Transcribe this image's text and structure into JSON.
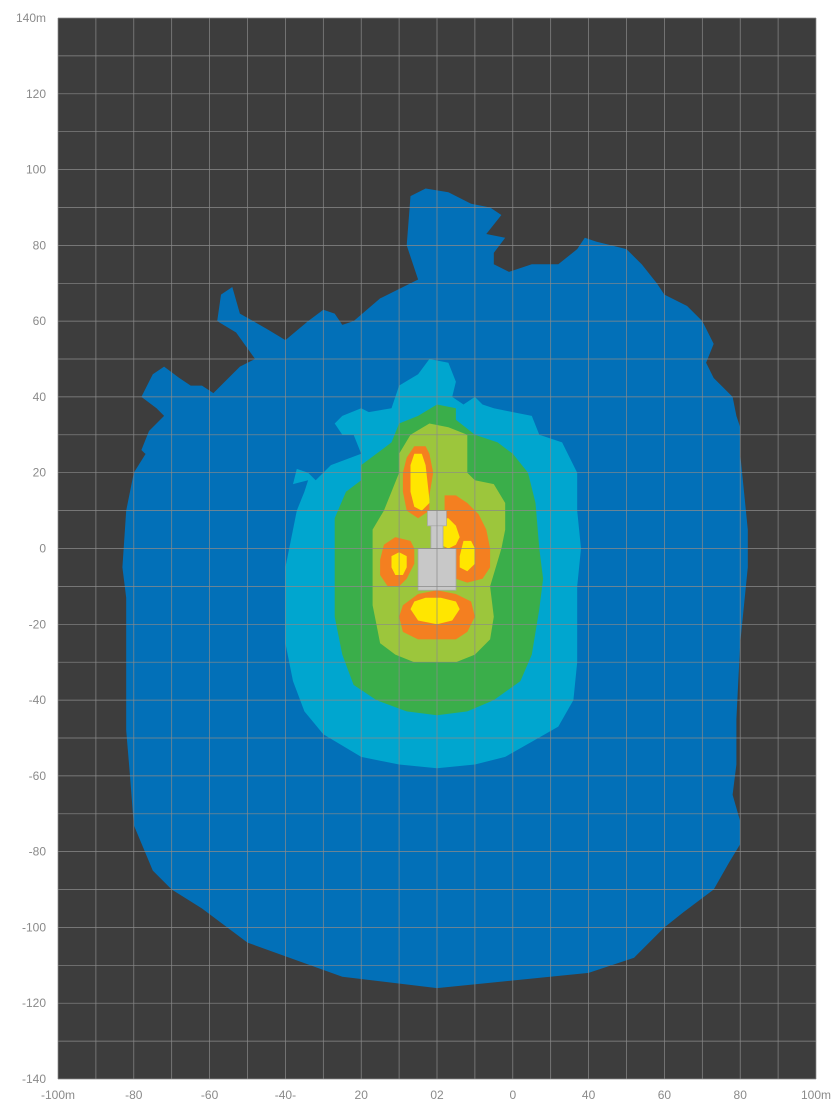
{
  "chart_data": {
    "type": "heatmap",
    "title": "",
    "xlabel": "",
    "ylabel": "",
    "xlim": [
      -100,
      100
    ],
    "ylim": [
      -140,
      140
    ],
    "grid": true,
    "x_tick_labels": [
      "-100m",
      "-80",
      "-60",
      "-40-",
      "20",
      "02",
      "0",
      "40",
      "60",
      "80",
      "100m"
    ],
    "y_tick_labels": [
      "140m",
      "120",
      "100",
      "80",
      "60",
      "40",
      "20",
      "0",
      "-20",
      "-40",
      "-60",
      "-80",
      "-100",
      "-120",
      "-140"
    ],
    "colors": {
      "background": "#3d3d3d",
      "grid": "#8a8a8a",
      "zone_1": "#0270b8",
      "zone_2": "#00a6cf",
      "zone_3": "#3aae4a",
      "zone_4": "#9cc63c",
      "zone_5": "#f47f20",
      "zone_6": "#ffe600",
      "machine": "#c8c8c8"
    },
    "zones": [
      {
        "id": "zone_1",
        "outline": [
          [
            0,
            -116
          ],
          [
            -25,
            -113
          ],
          [
            -50,
            -104
          ],
          [
            -62,
            -95
          ],
          [
            -70,
            -90
          ],
          [
            -75,
            -85
          ],
          [
            -80,
            -73
          ],
          [
            -81,
            -60
          ],
          [
            -82,
            -48
          ],
          [
            -82,
            -38
          ],
          [
            -82,
            -25
          ],
          [
            -82,
            -13
          ],
          [
            -83,
            -5
          ],
          [
            -82,
            10
          ],
          [
            -80,
            20
          ],
          [
            -75,
            28
          ],
          [
            -73,
            25
          ],
          [
            -77,
            25
          ],
          [
            -78,
            26
          ],
          [
            -76,
            31
          ],
          [
            -72,
            35
          ],
          [
            -74,
            37
          ],
          [
            -78,
            40
          ],
          [
            -75,
            46
          ],
          [
            -72,
            48
          ],
          [
            -68,
            45
          ],
          [
            -65,
            43
          ],
          [
            -62,
            43
          ],
          [
            -59,
            41
          ],
          [
            -52,
            48
          ],
          [
            -48,
            50
          ],
          [
            -53,
            57
          ],
          [
            -58,
            60
          ],
          [
            -57,
            67
          ],
          [
            -54,
            69
          ],
          [
            -52,
            62
          ],
          [
            -45,
            58
          ],
          [
            -40,
            55
          ],
          [
            -34,
            60
          ],
          [
            -30,
            63
          ],
          [
            -27,
            62
          ],
          [
            -25,
            59
          ],
          [
            -22,
            60
          ],
          [
            -15,
            66
          ],
          [
            -5,
            71
          ],
          [
            -8,
            80
          ],
          [
            -7,
            93
          ],
          [
            -3,
            95
          ],
          [
            3,
            94
          ],
          [
            9,
            91
          ],
          [
            14,
            90
          ],
          [
            17,
            88
          ],
          [
            13,
            83
          ],
          [
            18,
            82
          ],
          [
            15,
            78
          ],
          [
            15,
            75
          ],
          [
            19,
            73
          ],
          [
            25,
            75
          ],
          [
            29,
            75
          ],
          [
            32,
            75
          ],
          [
            37,
            79
          ],
          [
            39,
            82
          ],
          [
            42,
            81
          ],
          [
            50,
            79
          ],
          [
            54,
            75
          ],
          [
            58,
            70
          ],
          [
            60,
            67
          ],
          [
            66,
            64
          ],
          [
            70,
            60
          ],
          [
            73,
            54
          ],
          [
            71,
            49
          ],
          [
            73,
            45
          ],
          [
            78,
            40
          ],
          [
            79,
            35
          ],
          [
            80,
            32
          ],
          [
            80,
            25
          ],
          [
            81,
            15
          ],
          [
            82,
            5
          ],
          [
            82,
            -5
          ],
          [
            81,
            -15
          ],
          [
            80,
            -25
          ],
          [
            79,
            -45
          ],
          [
            79,
            -57
          ],
          [
            78,
            -65
          ],
          [
            80,
            -72
          ],
          [
            80,
            -78
          ],
          [
            77,
            -83
          ],
          [
            73,
            -90
          ],
          [
            65,
            -96
          ],
          [
            60,
            -100
          ],
          [
            52,
            -108
          ],
          [
            40,
            -112
          ],
          [
            20,
            -114
          ],
          [
            0,
            -116
          ]
        ]
      },
      {
        "id": "zone_2",
        "outline": [
          [
            0,
            -58
          ],
          [
            -10,
            -57
          ],
          [
            -20,
            -55
          ],
          [
            -30,
            -49
          ],
          [
            -35,
            -43
          ],
          [
            -38,
            -35
          ],
          [
            -40,
            -25
          ],
          [
            -40,
            -15
          ],
          [
            -40,
            -5
          ],
          [
            -39,
            0
          ],
          [
            -38,
            5
          ],
          [
            -37,
            10
          ],
          [
            -35,
            15
          ],
          [
            -34,
            18
          ],
          [
            -38,
            17
          ],
          [
            -37,
            21
          ],
          [
            -34,
            20
          ],
          [
            -32,
            18
          ],
          [
            -28,
            22
          ],
          [
            -20,
            25
          ],
          [
            -22,
            30
          ],
          [
            -25,
            30
          ],
          [
            -27,
            33
          ],
          [
            -25,
            35
          ],
          [
            -20,
            37
          ],
          [
            -18,
            36
          ],
          [
            -12,
            37
          ],
          [
            -10,
            43
          ],
          [
            -5,
            46
          ],
          [
            -2,
            50
          ],
          [
            3,
            49
          ],
          [
            5,
            44
          ],
          [
            4,
            40
          ],
          [
            7,
            38
          ],
          [
            10,
            40
          ],
          [
            12,
            38
          ],
          [
            15,
            37
          ],
          [
            20,
            36
          ],
          [
            25,
            35
          ],
          [
            27,
            30
          ],
          [
            33,
            28
          ],
          [
            37,
            20
          ],
          [
            37,
            10
          ],
          [
            38,
            0
          ],
          [
            37,
            -10
          ],
          [
            37,
            -20
          ],
          [
            37,
            -30
          ],
          [
            36,
            -40
          ],
          [
            32,
            -47
          ],
          [
            25,
            -51
          ],
          [
            18,
            -55
          ],
          [
            10,
            -57
          ],
          [
            0,
            -58
          ]
        ]
      },
      {
        "id": "zone_3",
        "outline": [
          [
            0,
            -44
          ],
          [
            -8,
            -43
          ],
          [
            -16,
            -40
          ],
          [
            -22,
            -36
          ],
          [
            -25,
            -28
          ],
          [
            -27,
            -18
          ],
          [
            -27,
            -8
          ],
          [
            -27,
            0
          ],
          [
            -27,
            8
          ],
          [
            -24,
            15
          ],
          [
            -20,
            18
          ],
          [
            -20,
            22
          ],
          [
            -16,
            25
          ],
          [
            -12,
            28
          ],
          [
            -10,
            33
          ],
          [
            -5,
            35
          ],
          [
            0,
            38
          ],
          [
            5,
            37
          ],
          [
            5,
            34
          ],
          [
            10,
            30
          ],
          [
            16,
            28
          ],
          [
            20,
            25
          ],
          [
            24,
            20
          ],
          [
            26,
            12
          ],
          [
            27,
            0
          ],
          [
            28,
            -8
          ],
          [
            27,
            -16
          ],
          [
            25,
            -28
          ],
          [
            22,
            -35
          ],
          [
            15,
            -40
          ],
          [
            8,
            -43
          ],
          [
            0,
            -44
          ]
        ]
      },
      {
        "id": "zone_4",
        "outline": [
          [
            0,
            -30
          ],
          [
            -6,
            -30
          ],
          [
            -11,
            -28
          ],
          [
            -15,
            -25
          ],
          [
            -16,
            -20
          ],
          [
            -17,
            -15
          ],
          [
            -17,
            -10
          ],
          [
            -17,
            -3
          ],
          [
            -17,
            5
          ],
          [
            -14,
            10
          ],
          [
            -12,
            15
          ],
          [
            -10,
            20
          ],
          [
            -10,
            25
          ],
          [
            -7,
            30
          ],
          [
            -2,
            33
          ],
          [
            3,
            32
          ],
          [
            8,
            30
          ],
          [
            8,
            20
          ],
          [
            10,
            18
          ],
          [
            15,
            17
          ],
          [
            18,
            12
          ],
          [
            18,
            5
          ],
          [
            17,
            0
          ],
          [
            14,
            -10
          ],
          [
            15,
            -18
          ],
          [
            14,
            -24
          ],
          [
            10,
            -28
          ],
          [
            5,
            -30
          ],
          [
            0,
            -30
          ]
        ]
      },
      {
        "id": "zone_5a",
        "outline": [
          [
            0,
            -24
          ],
          [
            -5,
            -24
          ],
          [
            -9,
            -22
          ],
          [
            -10,
            -18
          ],
          [
            -9,
            -15
          ],
          [
            -5,
            -12
          ],
          [
            0,
            -11
          ],
          [
            5,
            -12
          ],
          [
            9,
            -14
          ],
          [
            10,
            -18
          ],
          [
            8,
            -22
          ],
          [
            5,
            -24
          ],
          [
            0,
            -24
          ]
        ]
      },
      {
        "id": "zone_6a",
        "outline": [
          [
            0,
            -20
          ],
          [
            -5,
            -19
          ],
          [
            -7,
            -16
          ],
          [
            -6,
            -14
          ],
          [
            -3,
            -13
          ],
          [
            1,
            -13
          ],
          [
            5,
            -14
          ],
          [
            6,
            -16
          ],
          [
            4,
            -19
          ],
          [
            0,
            -20
          ]
        ]
      },
      {
        "id": "zone_5b",
        "outline": [
          [
            -10,
            -10
          ],
          [
            -13,
            -10
          ],
          [
            -15,
            -7
          ],
          [
            -15,
            -3
          ],
          [
            -14,
            1
          ],
          [
            -11,
            3
          ],
          [
            -7,
            2
          ],
          [
            -6,
            0
          ],
          [
            -6,
            -4
          ],
          [
            -8,
            -8
          ],
          [
            -10,
            -10
          ]
        ]
      },
      {
        "id": "zone_6b",
        "outline": [
          [
            -9,
            -7
          ],
          [
            -11,
            -7
          ],
          [
            -12,
            -5
          ],
          [
            -12,
            -2
          ],
          [
            -10,
            -1
          ],
          [
            -8,
            -2
          ],
          [
            -8,
            -5
          ],
          [
            -9,
            -7
          ]
        ]
      },
      {
        "id": "zone_5c",
        "outline": [
          [
            2,
            14
          ],
          [
            5,
            14
          ],
          [
            8,
            12
          ],
          [
            11,
            9
          ],
          [
            13,
            5
          ],
          [
            14,
            0
          ],
          [
            14,
            -5
          ],
          [
            12,
            -8
          ],
          [
            8,
            -9
          ],
          [
            5,
            -8
          ],
          [
            3,
            -5
          ],
          [
            2,
            -2
          ],
          [
            2,
            5
          ],
          [
            2,
            14
          ]
        ]
      },
      {
        "id": "zone_6c",
        "outline": [
          [
            7,
            2
          ],
          [
            9,
            2
          ],
          [
            10,
            0
          ],
          [
            10,
            -4
          ],
          [
            8,
            -6
          ],
          [
            6,
            -5
          ],
          [
            6,
            -2
          ],
          [
            7,
            2
          ]
        ]
      },
      {
        "id": "zone_5d",
        "outline": [
          [
            -2,
            14
          ],
          [
            -1,
            20
          ],
          [
            -2,
            25
          ],
          [
            -3,
            27
          ],
          [
            -6,
            27
          ],
          [
            -8,
            24
          ],
          [
            -9,
            20
          ],
          [
            -9,
            15
          ],
          [
            -8,
            10
          ],
          [
            -5,
            8
          ],
          [
            -2,
            10
          ],
          [
            -2,
            14
          ]
        ]
      },
      {
        "id": "zone_6d",
        "outline": [
          [
            -2,
            13
          ],
          [
            -3,
            22
          ],
          [
            -4,
            25
          ],
          [
            -6,
            25
          ],
          [
            -7,
            22
          ],
          [
            -7,
            15
          ],
          [
            -6,
            11
          ],
          [
            -4,
            10
          ],
          [
            -2,
            12
          ],
          [
            -2,
            13
          ]
        ]
      },
      {
        "id": "zone_6e",
        "outline": [
          [
            1,
            8
          ],
          [
            3,
            8
          ],
          [
            5,
            6
          ],
          [
            6,
            3
          ],
          [
            5,
            1
          ],
          [
            3,
            0
          ],
          [
            1,
            1
          ],
          [
            1,
            8
          ]
        ]
      }
    ],
    "machine": [
      {
        "shape": "rect",
        "x0": -5,
        "x1": 5,
        "y0": -11,
        "y1": 0
      },
      {
        "shape": "rect",
        "x0": -1.6,
        "x1": 1.6,
        "y0": 0,
        "y1": 7
      },
      {
        "shape": "rect",
        "x0": -2.5,
        "x1": 2.5,
        "y0": 6,
        "y1": 10
      }
    ]
  }
}
